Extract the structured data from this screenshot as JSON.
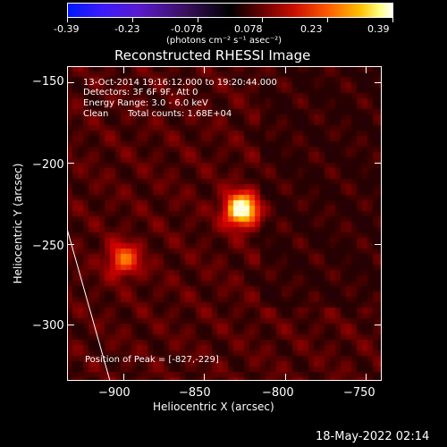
{
  "colorbar": {
    "ticks": [
      "-0.39",
      "-0.23",
      "-0.078",
      "0.078",
      "0.23",
      "0.39"
    ],
    "units": "(photons cm⁻² s⁻¹ asec⁻²)",
    "range": [
      -0.39,
      0.39
    ]
  },
  "chart_data": {
    "type": "heatmap",
    "title": "Reconstructed RHESSI Image",
    "xlabel": "Heliocentric X (arcsec)",
    "ylabel": "Heliocentric Y (arcsec)",
    "xlim": [
      -935,
      -740
    ],
    "ylim": [
      -335,
      -140
    ],
    "xticks": [
      -900,
      -850,
      -800,
      -750
    ],
    "yticks": [
      -150,
      -200,
      -250,
      -300
    ],
    "xtick_labels": [
      "−900",
      "−850",
      "−800",
      "−750"
    ],
    "ytick_labels": [
      "−150",
      "−200",
      "−250",
      "−300"
    ],
    "sources": [
      {
        "x": -827,
        "y": -229,
        "peak": 0.39
      },
      {
        "x": -900,
        "y": -260,
        "peak": 0.2
      }
    ],
    "annotations": [
      "13-Oct-2014 19:16:12.000 to 19:20:44.000",
      "Detectors: 3F 6F 9F, Att 0",
      "Energy Range: 3.0 - 6.0 keV",
      "Clean",
      "Total counts: 1.68E+04",
      "Position of Peak = [-827,-229]"
    ]
  },
  "footer": {
    "timestamp": "18-May-2022 02:14"
  }
}
